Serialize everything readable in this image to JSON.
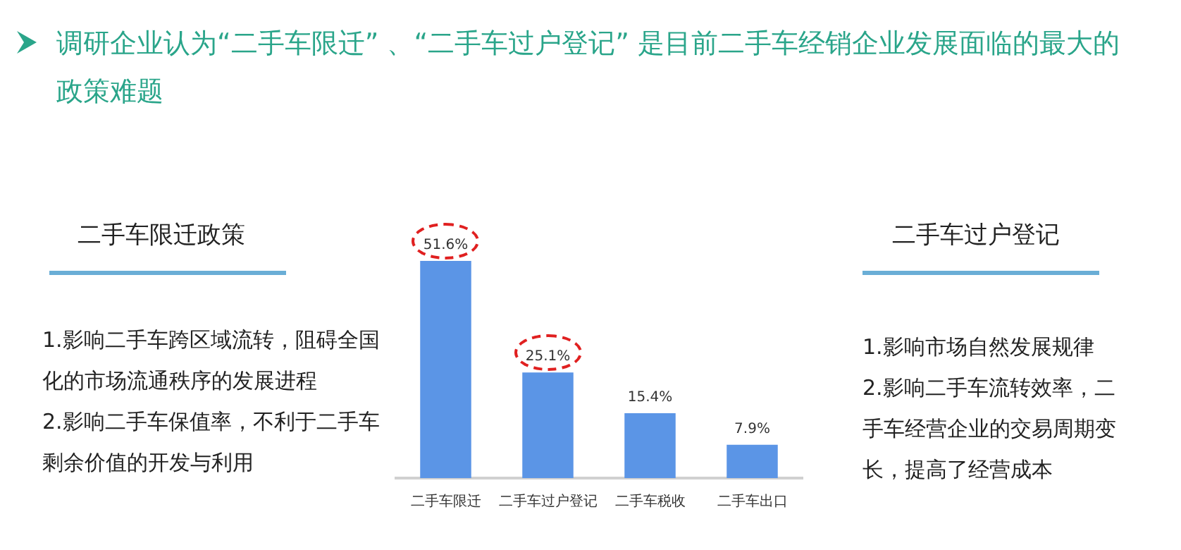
{
  "chart_data": {
    "type": "bar",
    "title": "调研企业认为“二手车限迁” 、“二手车过户登记” 是目前二手车经销企业发展面临的最大的政策难题",
    "categories": [
      "二手车限迁",
      "二手车过户登记",
      "二手车税收",
      "二手车出口"
    ],
    "values": [
      51.6,
      25.1,
      15.4,
      7.9
    ],
    "value_labels": [
      "51.6%",
      "25.1%",
      "15.4%",
      "7.9%"
    ],
    "color": "#5b95e6",
    "annotations": [
      "二手车限迁政策",
      "1.影响二手车跨区域流转，阻碍全国化的市场流通秩序的发展进程",
      "2.影响二手车保值率，不利于二手车剩余价值的开发与利用",
      "二手车过户登记",
      "1.影响市场自然发展规律",
      "2.影响二手车流转效率，二手车经营企业的交易周期变长，提高了经营成本"
    ]
  }
}
